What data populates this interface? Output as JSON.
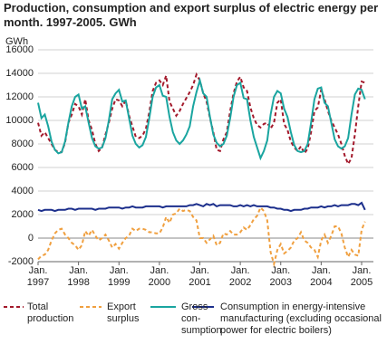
{
  "chart_data": {
    "type": "line",
    "title": "Production, consumption and export surplus of electric energy per month. 1997-2005. GWh",
    "y_label": "GWh",
    "ylim": [
      -2000,
      16000
    ],
    "yticks": [
      -2000,
      0,
      2000,
      4000,
      6000,
      8000,
      10000,
      12000,
      14000,
      16000
    ],
    "grid": true,
    "categories": [
      "Jan. 1997",
      null,
      null,
      null,
      null,
      null,
      null,
      null,
      null,
      null,
      null,
      null,
      "Jan. 1998",
      null,
      null,
      null,
      null,
      null,
      null,
      null,
      null,
      null,
      null,
      null,
      "Jan. 1999",
      null,
      null,
      null,
      null,
      null,
      null,
      null,
      null,
      null,
      null,
      null,
      "Jan. 2000",
      null,
      null,
      null,
      null,
      null,
      null,
      null,
      null,
      null,
      null,
      null,
      "Jan. 2001",
      null,
      null,
      null,
      null,
      null,
      null,
      null,
      null,
      null,
      null,
      null,
      "Jan. 2002",
      null,
      null,
      null,
      null,
      null,
      null,
      null,
      null,
      null,
      null,
      null,
      "Jan. 2003",
      null,
      null,
      null,
      null,
      null,
      null,
      null,
      null,
      null,
      null,
      null,
      "Jan. 2004",
      null,
      null,
      null,
      null,
      null,
      null,
      null,
      null,
      null,
      null,
      null,
      "Jan. 2005",
      null
    ],
    "series": [
      {
        "name": "Total production",
        "color": "#a3192b",
        "dash": "dashed",
        "values": [
          9800,
          8700,
          9000,
          8500,
          8000,
          7500,
          7300,
          7300,
          8100,
          9800,
          10500,
          11400,
          11200,
          10500,
          11800,
          10000,
          9200,
          8000,
          7400,
          7700,
          8800,
          9800,
          11000,
          11800,
          11700,
          11200,
          11700,
          10400,
          9500,
          8600,
          8500,
          8700,
          9300,
          10700,
          12500,
          13200,
          13400,
          13000,
          13800,
          11600,
          11000,
          10400,
          10800,
          11400,
          11900,
          12400,
          13000,
          13900,
          13400,
          12300,
          11600,
          10200,
          9000,
          7500,
          7400,
          8400,
          9000,
          10800,
          12300,
          13300,
          13700,
          12800,
          12500,
          11100,
          10200,
          9600,
          9400,
          9700,
          9800,
          9300,
          9800,
          11500,
          11800,
          9700,
          9200,
          8200,
          7700,
          7400,
          7800,
          7200,
          7600,
          9000,
          10800,
          11100,
          12600,
          11800,
          10800,
          10000,
          9400,
          8800,
          8000,
          7000,
          6300,
          6800,
          8800,
          11200,
          13300,
          13200
        ]
      },
      {
        "name": "Export surplus",
        "color": "#f0a040",
        "dash": "dashed",
        "values": [
          -1800,
          -1500,
          -1400,
          -1000,
          -200,
          400,
          700,
          800,
          300,
          0,
          -400,
          -600,
          -1000,
          -600,
          600,
          200,
          700,
          200,
          -200,
          0,
          300,
          -200,
          -800,
          -500,
          -900,
          -400,
          0,
          200,
          800,
          600,
          800,
          800,
          700,
          500,
          500,
          400,
          400,
          900,
          1800,
          1300,
          2000,
          2100,
          2500,
          2300,
          2400,
          2300,
          1800,
          1500,
          0,
          0,
          -400,
          -100,
          200,
          -600,
          -400,
          400,
          300,
          600,
          300,
          300,
          500,
          900,
          700,
          1100,
          1600,
          1900,
          2600,
          2300,
          1500,
          -1200,
          -2200,
          -1000,
          -500,
          -1300,
          -1100,
          -800,
          -200,
          0,
          500,
          -200,
          -400,
          -800,
          -1000,
          -1600,
          -200,
          300,
          -400,
          200,
          1000,
          1000,
          400,
          -800,
          -1600,
          -1000,
          -1400,
          -1500,
          700,
          1400
        ]
      },
      {
        "name": "Gross con- sumption",
        "color": "#1aa5a0",
        "dash": "solid",
        "values": [
          11500,
          10200,
          10500,
          9500,
          8200,
          7500,
          7200,
          7300,
          8200,
          9800,
          11200,
          12000,
          12200,
          11000,
          11200,
          9800,
          8500,
          7800,
          7600,
          7700,
          8500,
          10000,
          11800,
          12300,
          12600,
          11600,
          11700,
          10200,
          8700,
          8000,
          7700,
          7900,
          8600,
          10200,
          12000,
          12800,
          13000,
          12100,
          12000,
          10300,
          9000,
          8300,
          8000,
          8300,
          8800,
          9500,
          11200,
          12400,
          13400,
          12300,
          12000,
          10300,
          8800,
          8100,
          7800,
          8000,
          8700,
          10200,
          12000,
          13000,
          13200,
          11900,
          11800,
          10000,
          8600,
          7700,
          6800,
          7400,
          8300,
          10500,
          12000,
          12500,
          12300,
          11000,
          10300,
          9000,
          7900,
          7400,
          7300,
          7400,
          8000,
          9800,
          11800,
          12700,
          12800,
          11500,
          11200,
          9800,
          8400,
          7800,
          7600,
          7800,
          8500,
          10500,
          12200,
          12700,
          12600,
          11800
        ]
      },
      {
        "name": "Consumption in energy-intensive manufacturing (excluding occasional power for electric boilers)",
        "color": "#1c2f8c",
        "dash": "solid",
        "values": [
          2400,
          2300,
          2400,
          2400,
          2400,
          2300,
          2400,
          2400,
          2400,
          2500,
          2500,
          2400,
          2500,
          2500,
          2500,
          2500,
          2500,
          2400,
          2500,
          2500,
          2500,
          2600,
          2600,
          2600,
          2600,
          2500,
          2600,
          2600,
          2700,
          2600,
          2600,
          2600,
          2700,
          2700,
          2700,
          2700,
          2700,
          2600,
          2700,
          2700,
          2700,
          2700,
          2700,
          2700,
          2700,
          2800,
          2800,
          2900,
          2800,
          2700,
          2900,
          2800,
          2900,
          2700,
          2800,
          2800,
          2800,
          2800,
          2700,
          2700,
          2800,
          2700,
          2800,
          2700,
          2800,
          2700,
          2700,
          2700,
          2700,
          2600,
          2600,
          2500,
          2500,
          2400,
          2400,
          2300,
          2400,
          2400,
          2400,
          2500,
          2500,
          2600,
          2600,
          2600,
          2700,
          2600,
          2700,
          2700,
          2800,
          2700,
          2800,
          2800,
          2800,
          2900,
          2900,
          2800,
          3000,
          2400
        ]
      }
    ]
  }
}
